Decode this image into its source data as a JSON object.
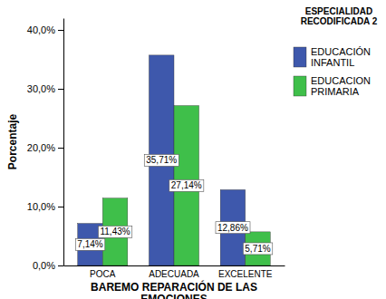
{
  "chart_data": {
    "type": "bar",
    "x_label": "BAREMO REPARACIÓN DE LAS EMOCIONES",
    "y_label": "Porcentaje",
    "legend_title": "ESPECIALIDAD RECODIFICADA 2",
    "categories": [
      "POCA",
      "ADECUADA",
      "EXCELENTE"
    ],
    "series": [
      {
        "name": "EDUCACIÓN INFANTIL",
        "color": "#3e58ac",
        "values": [
          7.14,
          35.71,
          12.86
        ],
        "value_labels": [
          "7,14%",
          "35,71%",
          "12,86%"
        ]
      },
      {
        "name": "EDUCACION PRIMARIA",
        "color": "#3fbf4a",
        "values": [
          11.43,
          27.14,
          5.71
        ],
        "value_labels": [
          "11,43%",
          "27,14%",
          "5,71%"
        ]
      }
    ],
    "ylim": [
      0,
      42
    ],
    "yticks": [
      {
        "value": 0,
        "label": "0,0%"
      },
      {
        "value": 10,
        "label": "10,0%"
      },
      {
        "value": 20,
        "label": "20,0%"
      },
      {
        "value": 30,
        "label": "30,0%"
      },
      {
        "value": 40,
        "label": "40,0%"
      }
    ],
    "grid": false,
    "legend": "top-right",
    "data_labels": true
  }
}
